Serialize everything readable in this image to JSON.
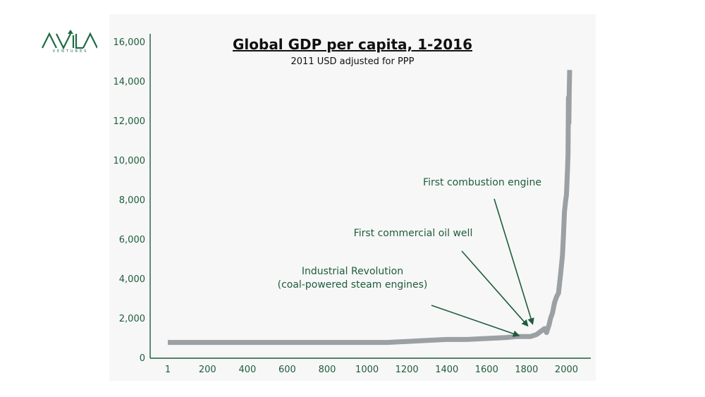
{
  "brand": {
    "logo_text": "AVILA",
    "logo_subtext": "VENTURES",
    "accent": "#1f6b43"
  },
  "chart_data": {
    "type": "line",
    "title": "Global GDP per capita, 1-2016",
    "subtitle": "2011 USD adjusted for PPP",
    "xlabel": "",
    "ylabel": "",
    "xlim": [
      1,
      2100
    ],
    "ylim": [
      0,
      16000
    ],
    "x_ticks": [
      1,
      200,
      400,
      600,
      800,
      1000,
      1200,
      1400,
      1600,
      1800,
      2000
    ],
    "y_ticks": [
      0,
      2000,
      4000,
      6000,
      8000,
      10000,
      12000,
      14000,
      16000
    ],
    "y_tick_labels": [
      "0",
      "2,000",
      "4,000",
      "6,000",
      "8,000",
      "10,000",
      "12,000",
      "14,000",
      "16,000"
    ],
    "grid": false,
    "line_color": "#9aa0a4",
    "series": [
      {
        "name": "",
        "x": [
          1,
          1000,
          1100,
          1200,
          1300,
          1400,
          1500,
          1600,
          1700,
          1750,
          1800,
          1820,
          1850,
          1870,
          1890,
          1900,
          1913,
          1920,
          1930,
          1940,
          1950,
          1960,
          1970,
          1980,
          1985,
          1990,
          1995,
          2000,
          2005,
          2008,
          2010,
          2012,
          2014,
          2016
        ],
        "y": [
          800,
          800,
          800,
          850,
          900,
          950,
          950,
          1000,
          1050,
          1100,
          1100,
          1100,
          1200,
          1350,
          1500,
          1300,
          1700,
          2000,
          2300,
          2800,
          3100,
          3300,
          4200,
          5200,
          6200,
          7400,
          7900,
          8300,
          9500,
          10300,
          13200,
          11900,
          13500,
          14600
        ]
      }
    ],
    "annotations": [
      {
        "lines": [
          "Industrial Revolution",
          "(coal-powered steam engines)"
        ],
        "arrow_to": [
          1760,
          1150
        ]
      },
      {
        "lines": [
          "First commercial oil well"
        ],
        "arrow_to": [
          1805,
          1650
        ]
      },
      {
        "lines": [
          "First combustion engine"
        ],
        "arrow_to": [
          1830,
          1750
        ]
      }
    ]
  }
}
